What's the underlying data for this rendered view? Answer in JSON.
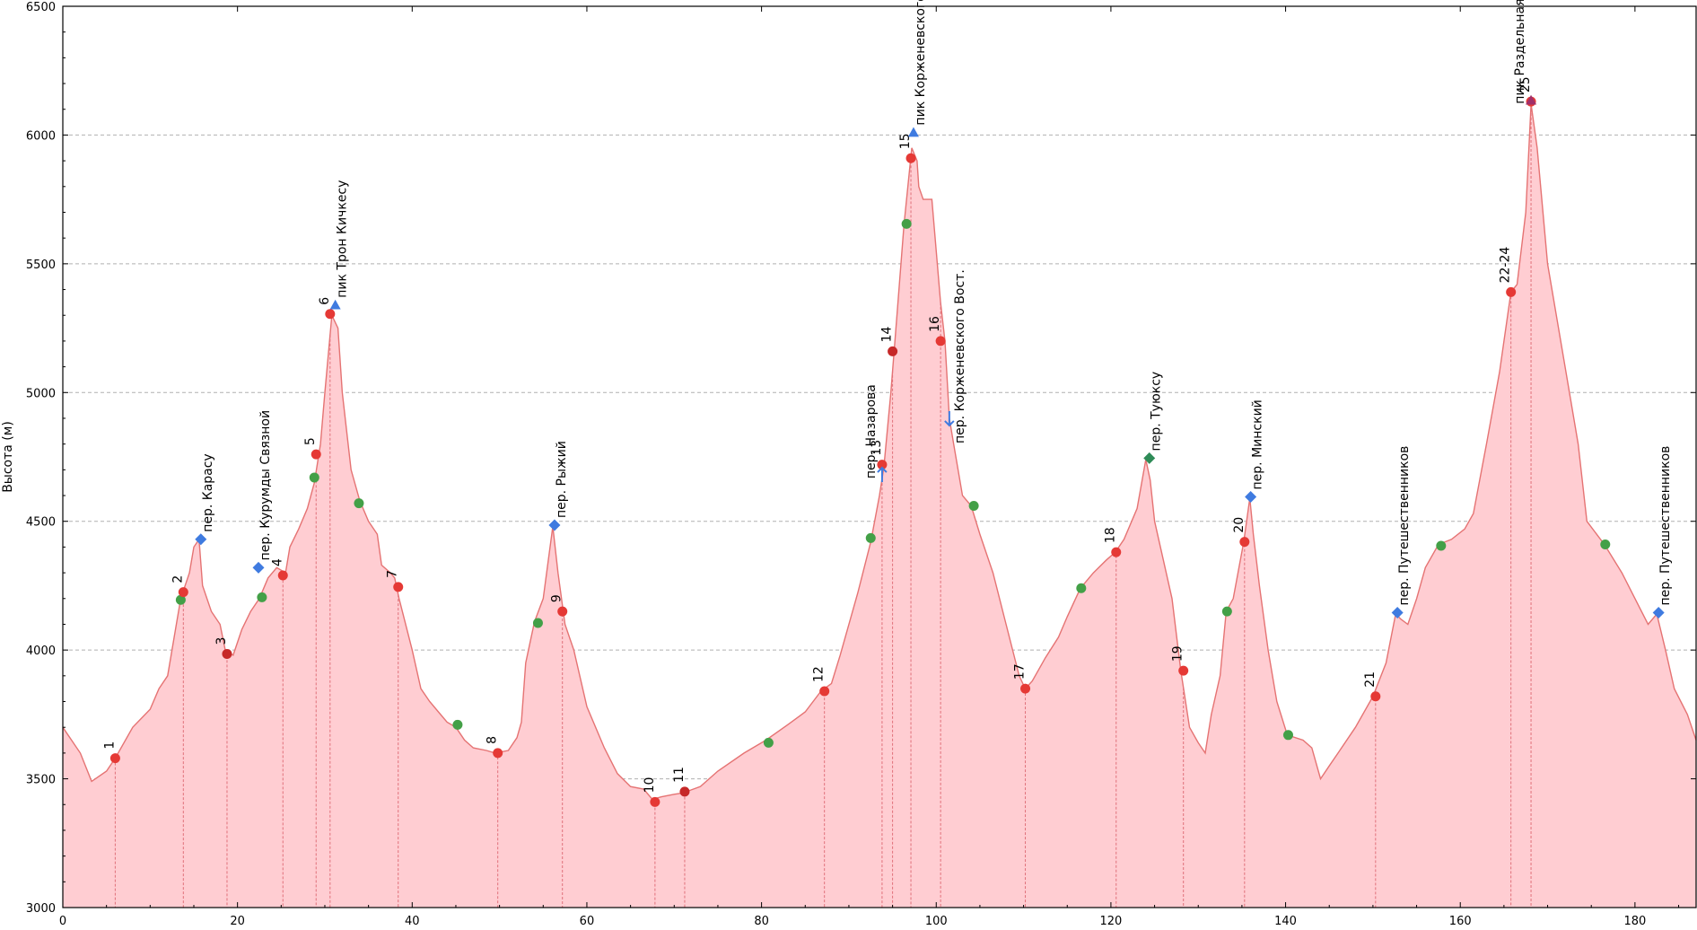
{
  "chart_data": {
    "type": "area",
    "xlabel": "",
    "ylabel": "Высота (м)",
    "xlim": [
      0,
      187
    ],
    "ylim": [
      3000,
      6500
    ],
    "xticks": [
      0,
      20,
      40,
      60,
      80,
      100,
      120,
      140,
      160,
      180
    ],
    "yticks": [
      3000,
      3500,
      4000,
      4500,
      5000,
      5500,
      6000,
      6500
    ],
    "grid": "y-dashed",
    "colors": {
      "fill": "#ffcdd2",
      "line": "#e57373",
      "red": "#e53935",
      "green": "#43a047",
      "blue": "#3f7be0",
      "darkred": "#c62828",
      "teal": "#2e8b57",
      "purple": "#a0306a"
    },
    "profile": [
      [
        0,
        3700
      ],
      [
        2,
        3600
      ],
      [
        3.3,
        3490
      ],
      [
        5,
        3530
      ],
      [
        6,
        3580
      ],
      [
        8,
        3700
      ],
      [
        10,
        3770
      ],
      [
        11,
        3850
      ],
      [
        12,
        3900
      ],
      [
        13,
        4100
      ],
      [
        13.5,
        4200
      ],
      [
        14.5,
        4300
      ],
      [
        15,
        4400
      ],
      [
        15.6,
        4430
      ],
      [
        16,
        4250
      ],
      [
        17,
        4150
      ],
      [
        18,
        4100
      ],
      [
        18.6,
        4000
      ],
      [
        19.5,
        3980
      ],
      [
        20.5,
        4080
      ],
      [
        21.5,
        4150
      ],
      [
        22.5,
        4200
      ],
      [
        23.5,
        4280
      ],
      [
        24.5,
        4320
      ],
      [
        25.5,
        4300
      ],
      [
        26,
        4400
      ],
      [
        27,
        4470
      ],
      [
        28,
        4550
      ],
      [
        28.8,
        4650
      ],
      [
        29.5,
        4800
      ],
      [
        30,
        5000
      ],
      [
        30.8,
        5300
      ],
      [
        31.5,
        5250
      ],
      [
        32,
        5000
      ],
      [
        33,
        4700
      ],
      [
        34,
        4580
      ],
      [
        35,
        4500
      ],
      [
        36,
        4450
      ],
      [
        36.5,
        4330
      ],
      [
        37.5,
        4300
      ],
      [
        38,
        4280
      ],
      [
        38.5,
        4200
      ],
      [
        40,
        4000
      ],
      [
        41,
        3850
      ],
      [
        42,
        3800
      ],
      [
        43,
        3760
      ],
      [
        44,
        3720
      ],
      [
        45,
        3700
      ],
      [
        46,
        3650
      ],
      [
        47,
        3620
      ],
      [
        48.5,
        3610
      ],
      [
        49.5,
        3600
      ],
      [
        51,
        3610
      ],
      [
        52,
        3660
      ],
      [
        52.5,
        3720
      ],
      [
        53,
        3950
      ],
      [
        54,
        4110
      ],
      [
        55,
        4200
      ],
      [
        56.1,
        4480
      ],
      [
        56.7,
        4300
      ],
      [
        57.5,
        4100
      ],
      [
        58.5,
        4000
      ],
      [
        60,
        3780
      ],
      [
        62,
        3620
      ],
      [
        63.5,
        3520
      ],
      [
        65,
        3470
      ],
      [
        66.5,
        3460
      ],
      [
        67.5,
        3420
      ],
      [
        68.5,
        3430
      ],
      [
        70,
        3440
      ],
      [
        71,
        3445
      ],
      [
        73,
        3470
      ],
      [
        75,
        3530
      ],
      [
        78,
        3600
      ],
      [
        80.5,
        3650
      ],
      [
        83,
        3710
      ],
      [
        85,
        3760
      ],
      [
        86.8,
        3840
      ],
      [
        88,
        3870
      ],
      [
        89,
        3980
      ],
      [
        91,
        4220
      ],
      [
        92.5,
        4420
      ],
      [
        93.5,
        4600
      ],
      [
        94,
        4710
      ],
      [
        94.8,
        5000
      ],
      [
        95.5,
        5300
      ],
      [
        96.3,
        5650
      ],
      [
        97.2,
        5950
      ],
      [
        97.8,
        5900
      ],
      [
        98,
        5800
      ],
      [
        98.5,
        5750
      ],
      [
        99.5,
        5750
      ],
      [
        100.5,
        5350
      ],
      [
        101,
        5200
      ],
      [
        101.5,
        4900
      ],
      [
        102,
        4800
      ],
      [
        103,
        4600
      ],
      [
        104,
        4560
      ],
      [
        105,
        4450
      ],
      [
        106.5,
        4300
      ],
      [
        108,
        4100
      ],
      [
        109.5,
        3900
      ],
      [
        110.2,
        3850
      ],
      [
        111,
        3880
      ],
      [
        112.5,
        3970
      ],
      [
        114,
        4050
      ],
      [
        115,
        4130
      ],
      [
        116.5,
        4240
      ],
      [
        118,
        4300
      ],
      [
        119.5,
        4350
      ],
      [
        120.5,
        4380
      ],
      [
        121.5,
        4430
      ],
      [
        123,
        4550
      ],
      [
        124,
        4740
      ],
      [
        124.5,
        4660
      ],
      [
        125,
        4500
      ],
      [
        126,
        4350
      ],
      [
        127,
        4200
      ],
      [
        128,
        3920
      ],
      [
        129,
        3700
      ],
      [
        130,
        3640
      ],
      [
        130.8,
        3600
      ],
      [
        131.5,
        3750
      ],
      [
        132.5,
        3900
      ],
      [
        133.2,
        4150
      ],
      [
        134,
        4200
      ],
      [
        135.2,
        4420
      ],
      [
        135.9,
        4590
      ],
      [
        136.3,
        4450
      ],
      [
        137,
        4250
      ],
      [
        138,
        4000
      ],
      [
        139,
        3800
      ],
      [
        140.2,
        3670
      ],
      [
        142,
        3650
      ],
      [
        143,
        3620
      ],
      [
        144,
        3500
      ],
      [
        145,
        3550
      ],
      [
        146,
        3600
      ],
      [
        148,
        3700
      ],
      [
        150,
        3820
      ],
      [
        151.5,
        3950
      ],
      [
        152.6,
        4140
      ],
      [
        153.2,
        4120
      ],
      [
        154,
        4100
      ],
      [
        155,
        4200
      ],
      [
        156,
        4320
      ],
      [
        157.5,
        4410
      ],
      [
        159,
        4430
      ],
      [
        160.5,
        4470
      ],
      [
        161.5,
        4530
      ],
      [
        163,
        4800
      ],
      [
        164.5,
        5080
      ],
      [
        165,
        5200
      ],
      [
        165.8,
        5390
      ],
      [
        166.5,
        5420
      ],
      [
        167.5,
        5700
      ],
      [
        168.1,
        6120
      ],
      [
        168.8,
        5950
      ],
      [
        170,
        5500
      ],
      [
        172,
        5100
      ],
      [
        173.5,
        4800
      ],
      [
        174.5,
        4500
      ],
      [
        176.5,
        4410
      ],
      [
        178.5,
        4300
      ],
      [
        180,
        4200
      ],
      [
        181.5,
        4100
      ],
      [
        182.5,
        4140
      ],
      [
        183.5,
        4000
      ],
      [
        184.5,
        3850
      ],
      [
        186,
        3750
      ],
      [
        187,
        3650
      ]
    ],
    "red_points": [
      {
        "label": "1",
        "x": 6,
        "y": 3580
      },
      {
        "label": "2",
        "x": 13.8,
        "y": 4225
      },
      {
        "label": "3",
        "x": 18.8,
        "y": 3985
      },
      {
        "label": "4",
        "x": 25.2,
        "y": 4290
      },
      {
        "label": "5",
        "x": 29,
        "y": 4760
      },
      {
        "label": "6",
        "x": 30.6,
        "y": 5305
      },
      {
        "label": "7",
        "x": 38.4,
        "y": 4245
      },
      {
        "label": "8",
        "x": 49.8,
        "y": 3600
      },
      {
        "label": "9",
        "x": 57.2,
        "y": 4150
      },
      {
        "label": "10",
        "x": 67.8,
        "y": 3410
      },
      {
        "label": "11",
        "x": 71.2,
        "y": 3450
      },
      {
        "label": "12",
        "x": 87.2,
        "y": 3840
      },
      {
        "label": "13",
        "x": 93.8,
        "y": 4720
      },
      {
        "label": "14",
        "x": 95,
        "y": 5160
      },
      {
        "label": "15",
        "x": 97.1,
        "y": 5910
      },
      {
        "label": "16",
        "x": 100.5,
        "y": 5200
      },
      {
        "label": "17",
        "x": 110.2,
        "y": 3850
      },
      {
        "label": "18",
        "x": 120.6,
        "y": 4380
      },
      {
        "label": "19",
        "x": 128.3,
        "y": 3920
      },
      {
        "label": "20",
        "x": 135.3,
        "y": 4420
      },
      {
        "label": "21",
        "x": 150.3,
        "y": 3820
      },
      {
        "label": "22-24",
        "x": 165.8,
        "y": 5390
      },
      {
        "label": "25",
        "x": 168.1,
        "y": 6130
      }
    ],
    "dark_points": [
      "3",
      "11",
      "14"
    ],
    "green_points": [
      {
        "x": 13.5,
        "y": 4195
      },
      {
        "x": 22.8,
        "y": 4205
      },
      {
        "x": 28.8,
        "y": 4670
      },
      {
        "x": 33.9,
        "y": 4570
      },
      {
        "x": 45.2,
        "y": 3710
      },
      {
        "x": 54.4,
        "y": 4105
      },
      {
        "x": 80.8,
        "y": 3640
      },
      {
        "x": 92.5,
        "y": 4435
      },
      {
        "x": 96.6,
        "y": 5655
      },
      {
        "x": 104.3,
        "y": 4560
      },
      {
        "x": 116.6,
        "y": 4240
      },
      {
        "x": 133.3,
        "y": 4150
      },
      {
        "x": 140.3,
        "y": 3670
      },
      {
        "x": 157.8,
        "y": 4405
      },
      {
        "x": 176.6,
        "y": 4410
      }
    ],
    "peaks": [
      {
        "name": "пер. Карасу",
        "x": 15.8,
        "y": 4430,
        "marker": "diamond",
        "side": "right",
        "rot": true
      },
      {
        "name": "пер. Курумды Связной",
        "x": 22.4,
        "y": 4320,
        "marker": "diamond",
        "side": "right",
        "rot": true
      },
      {
        "name": "пик Трон Кичкесу",
        "x": 31.2,
        "y": 5340,
        "marker": "triangle",
        "side": "right",
        "rot": true
      },
      {
        "name": "пер. Рыжий",
        "x": 56.3,
        "y": 4485,
        "marker": "diamond",
        "side": "right",
        "rot": true
      },
      {
        "name": "пер. Назарова",
        "x": 93.8,
        "y": 4680,
        "marker": "arrow-up",
        "side": "left",
        "rot": true
      },
      {
        "name": "пик Корженевского",
        "x": 97.4,
        "y": 6010,
        "marker": "triangle",
        "side": "right",
        "rot": true
      },
      {
        "name": "пер. Корженевского Вост.",
        "x": 101.5,
        "y": 4900,
        "marker": "arrow-down",
        "side": "right",
        "rot": true
      },
      {
        "name": "пер. Туюксу",
        "x": 124.4,
        "y": 4745,
        "marker": "diamond-teal",
        "side": "right",
        "rot": true
      },
      {
        "name": "пер. Минский",
        "x": 136,
        "y": 4595,
        "marker": "diamond",
        "side": "right",
        "rot": true
      },
      {
        "name": "пер. Путешественников",
        "x": 152.8,
        "y": 4145,
        "marker": "diamond",
        "side": "right",
        "rot": true
      },
      {
        "name": "пик Раздельная",
        "x": 168.1,
        "y": 6135,
        "marker": "triangle-purple",
        "side": "left",
        "rot": true
      },
      {
        "name": "пер. Путешественников",
        "x": 182.7,
        "y": 4145,
        "marker": "diamond",
        "side": "right",
        "rot": true
      }
    ]
  }
}
